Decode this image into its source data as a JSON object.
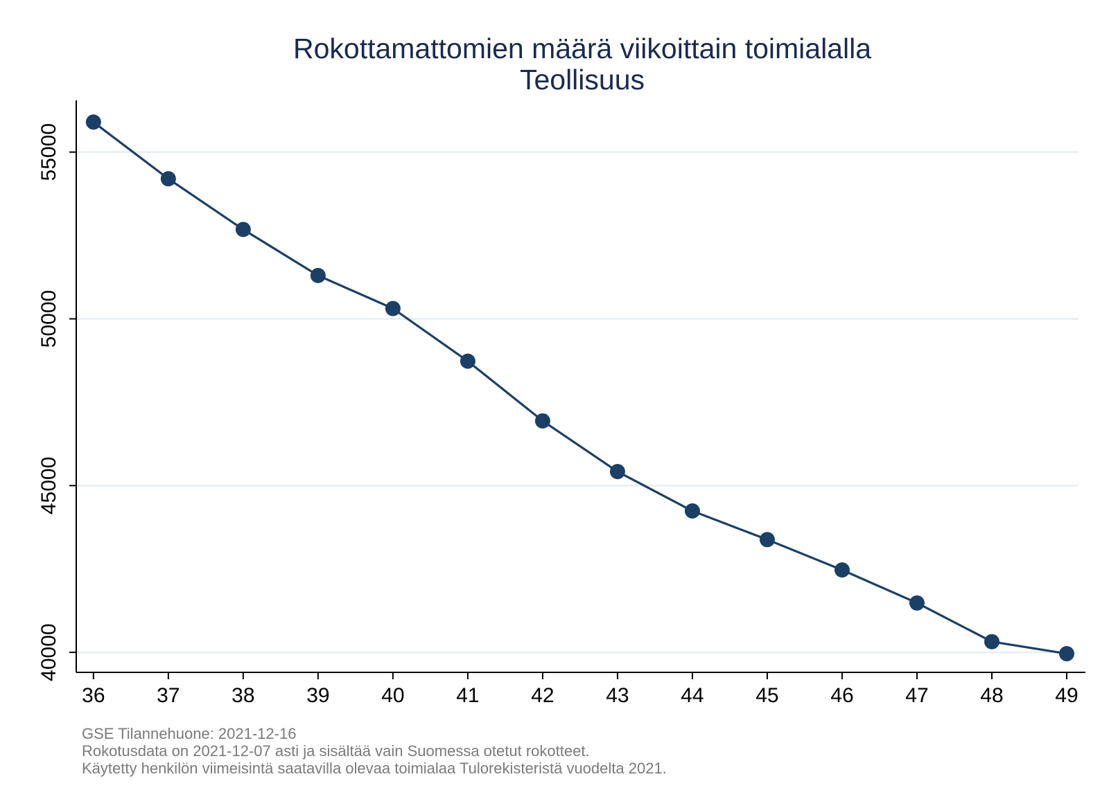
{
  "chart_data": {
    "type": "line",
    "title": "Rokottamattomien määrä viikoittain toimialalla",
    "subtitle": "Teollisuus",
    "xlabel": "",
    "ylabel": "",
    "x": [
      36,
      37,
      38,
      39,
      40,
      41,
      42,
      43,
      44,
      45,
      46,
      47,
      48,
      49
    ],
    "series": [
      {
        "values": [
          55900,
          54200,
          52680,
          51300,
          50310,
          48730,
          46940,
          45420,
          44240,
          43380,
          42470,
          41480,
          40320,
          39960
        ]
      }
    ],
    "xlim": [
      35.77,
      49.25
    ],
    "ylim": [
      39400,
      56550
    ],
    "yticks": [
      40000,
      45000,
      50000,
      55000
    ],
    "xticks": [
      36,
      37,
      38,
      39,
      40,
      41,
      42,
      43,
      44,
      45,
      46,
      47,
      48,
      49
    ],
    "grid": "horizontal",
    "legend": "none",
    "colors": {
      "line": "#1c3f66",
      "marker": "#1c3f66",
      "grid": "#e6eef0",
      "title": "#1a2a4f",
      "note": "#7a7a7a"
    }
  },
  "notes": [
    "GSE Tilannehuone: 2021-12-16",
    "Rokotusdata on 2021-12-07 asti ja sisältää vain Suomessa otetut rokotteet.",
    "Käytetty henkilön viimeisintä saatavilla olevaa toimialaa Tulorekisteristä vuodelta 2021."
  ]
}
